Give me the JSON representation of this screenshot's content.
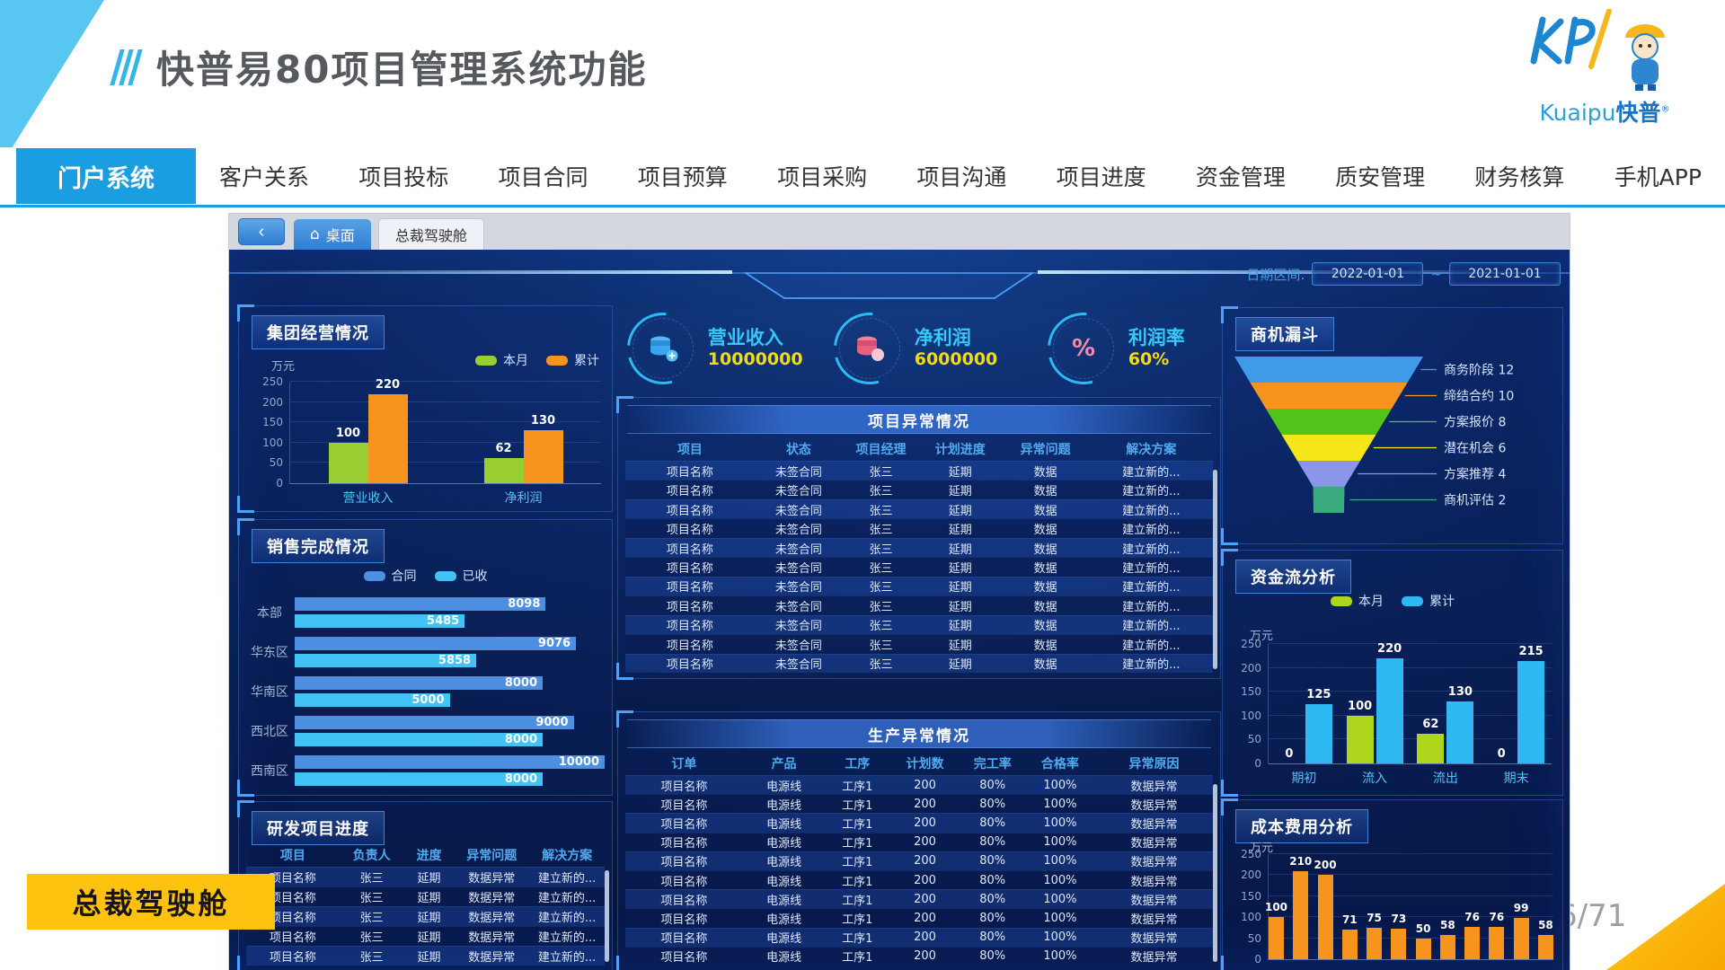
{
  "slide": {
    "title": "快普易80项目管理系统功能",
    "page_number": "6/71",
    "bottom_label": "总裁驾驶舱",
    "logo": {
      "en": "Kuaipu",
      "cn": "快普",
      "reg": "®"
    }
  },
  "nav": {
    "active_label": "门户系统",
    "items": [
      {
        "key": "customer-relations",
        "label": "客户关系"
      },
      {
        "key": "project-bidding",
        "label": "项目投标"
      },
      {
        "key": "project-contract",
        "label": "项目合同"
      },
      {
        "key": "project-budget",
        "label": "项目预算"
      },
      {
        "key": "project-procurement",
        "label": "项目采购"
      },
      {
        "key": "project-communication",
        "label": "项目沟通"
      },
      {
        "key": "project-progress",
        "label": "项目进度"
      },
      {
        "key": "fund-management",
        "label": "资金管理"
      },
      {
        "key": "quality-safety",
        "label": "质安管理"
      },
      {
        "key": "financial-accounting",
        "label": "财务核算"
      },
      {
        "key": "mobile-app",
        "label": "手机APP"
      }
    ]
  },
  "dashboard": {
    "tabs": {
      "back": "‹",
      "desktop": "桌面",
      "cockpit": "总裁驾驶舱"
    },
    "date_range": {
      "label": "日期区间:",
      "start": "2022-01-01",
      "separator": "~",
      "end": "2021-01-01"
    },
    "kpis": [
      {
        "icon": "coins-plus-icon",
        "label": "营业收入",
        "value": "10000000"
      },
      {
        "icon": "coins-icon",
        "label": "净利润",
        "value": "6000000"
      },
      {
        "icon": "percent-icon",
        "label": "利润率",
        "value": "60%"
      }
    ],
    "panels": {
      "group": {
        "title": "集团经营情况",
        "unit": "万元",
        "max": 250,
        "yticks": [
          250,
          200,
          150,
          100,
          50,
          0
        ],
        "type": "bar",
        "legend": [
          {
            "label": "本月",
            "color": "#9ACD32"
          },
          {
            "label": "累计",
            "color": "#F7941D"
          }
        ],
        "groups": [
          {
            "label": "营业收入",
            "values": [
              100,
              220
            ]
          },
          {
            "label": "净利润",
            "values": [
              62,
              130
            ]
          }
        ]
      },
      "sales": {
        "title": "销售完成情况",
        "max": 10000,
        "type": "hbar",
        "legend": [
          {
            "label": "合同",
            "color": "#4D8FE0"
          },
          {
            "label": "已收",
            "color": "#41C4F5"
          }
        ],
        "rows": [
          {
            "label": "本部",
            "contract": 8098,
            "received": 5485
          },
          {
            "label": "华东区",
            "contract": 9076,
            "received": 5858
          },
          {
            "label": "华南区",
            "contract": 8000,
            "received": 5000
          },
          {
            "label": "西北区",
            "contract": 9000,
            "received": 8000
          },
          {
            "label": "西南区",
            "contract": 10000,
            "received": 8000
          }
        ]
      },
      "rd": {
        "title": "研发项目进度",
        "headers": [
          "项目",
          "负责人",
          "进度",
          "异常问题",
          "解决方案"
        ],
        "widths": [
          26,
          18,
          14,
          21,
          21
        ],
        "rows": [
          [
            "项目名称",
            "张三",
            "延期",
            "数据异常",
            "建立新的..."
          ],
          [
            "项目名称",
            "张三",
            "延期",
            "数据异常",
            "建立新的..."
          ],
          [
            "项目名称",
            "张三",
            "延期",
            "数据异常",
            "建立新的..."
          ],
          [
            "项目名称",
            "张三",
            "延期",
            "数据异常",
            "建立新的..."
          ],
          [
            "项目名称",
            "张三",
            "延期",
            "数据异常",
            "建立新的..."
          ]
        ]
      },
      "project": {
        "title": "项目异常情况",
        "headers": [
          "项目",
          "状态",
          "项目经理",
          "计划进度",
          "异常问题",
          "解决方案"
        ],
        "widths": [
          22,
          15,
          13,
          14,
          15,
          21
        ],
        "rows": [
          [
            "项目名称",
            "未签合同",
            "张三",
            "延期",
            "数据",
            "建立新的..."
          ],
          [
            "项目名称",
            "未签合同",
            "张三",
            "延期",
            "数据",
            "建立新的..."
          ],
          [
            "项目名称",
            "未签合同",
            "张三",
            "延期",
            "数据",
            "建立新的..."
          ],
          [
            "项目名称",
            "未签合同",
            "张三",
            "延期",
            "数据",
            "建立新的..."
          ],
          [
            "项目名称",
            "未签合同",
            "张三",
            "延期",
            "数据",
            "建立新的..."
          ],
          [
            "项目名称",
            "未签合同",
            "张三",
            "延期",
            "数据",
            "建立新的..."
          ],
          [
            "项目名称",
            "未签合同",
            "张三",
            "延期",
            "数据",
            "建立新的..."
          ],
          [
            "项目名称",
            "未签合同",
            "张三",
            "延期",
            "数据",
            "建立新的..."
          ],
          [
            "项目名称",
            "未签合同",
            "张三",
            "延期",
            "数据",
            "建立新的..."
          ],
          [
            "项目名称",
            "未签合同",
            "张三",
            "延期",
            "数据",
            "建立新的..."
          ],
          [
            "项目名称",
            "未签合同",
            "张三",
            "延期",
            "数据",
            "建立新的..."
          ]
        ]
      },
      "production": {
        "title": "生产异常情况",
        "headers": [
          "订单",
          "产品",
          "工序",
          "计划数",
          "完工率",
          "合格率",
          "异常原因"
        ],
        "widths": [
          20,
          14,
          11,
          12,
          11,
          12,
          20
        ],
        "rows": [
          [
            "项目名称",
            "电源线",
            "工序1",
            "200",
            "80%",
            "100%",
            "数据异常"
          ],
          [
            "项目名称",
            "电源线",
            "工序1",
            "200",
            "80%",
            "100%",
            "数据异常"
          ],
          [
            "项目名称",
            "电源线",
            "工序1",
            "200",
            "80%",
            "100%",
            "数据异常"
          ],
          [
            "项目名称",
            "电源线",
            "工序1",
            "200",
            "80%",
            "100%",
            "数据异常"
          ],
          [
            "项目名称",
            "电源线",
            "工序1",
            "200",
            "80%",
            "100%",
            "数据异常"
          ],
          [
            "项目名称",
            "电源线",
            "工序1",
            "200",
            "80%",
            "100%",
            "数据异常"
          ],
          [
            "项目名称",
            "电源线",
            "工序1",
            "200",
            "80%",
            "100%",
            "数据异常"
          ],
          [
            "项目名称",
            "电源线",
            "工序1",
            "200",
            "80%",
            "100%",
            "数据异常"
          ],
          [
            "项目名称",
            "电源线",
            "工序1",
            "200",
            "80%",
            "100%",
            "数据异常"
          ],
          [
            "项目名称",
            "电源线",
            "工序1",
            "200",
            "80%",
            "100%",
            "数据异常"
          ]
        ]
      },
      "funnel": {
        "title": "商机漏斗",
        "type": "funnel",
        "stages": [
          {
            "label": "商务阶段",
            "value": 12,
            "color": "#3F9BE8"
          },
          {
            "label": "缔结合约",
            "value": 10,
            "color": "#F7941D"
          },
          {
            "label": "方案报价",
            "value": 8,
            "color": "#52C41A"
          },
          {
            "label": "潜在机会",
            "value": 6,
            "color": "#F5E61A"
          },
          {
            "label": "方案推荐",
            "value": 4,
            "color": "#8B96E8"
          },
          {
            "label": "商机评估",
            "value": 2,
            "color": "#3BAA7E"
          }
        ]
      },
      "cash": {
        "title": "资金流分析",
        "unit": "万元",
        "max": 250,
        "yticks": [
          250,
          200,
          150,
          100,
          50,
          0
        ],
        "type": "bar",
        "legend": [
          {
            "label": "本月",
            "color": "#AED61C"
          },
          {
            "label": "累计",
            "color": "#2FB9F2"
          }
        ],
        "groups": [
          {
            "label": "期初",
            "values": [
              0,
              125
            ]
          },
          {
            "label": "流入",
            "values": [
              100,
              220
            ]
          },
          {
            "label": "流出",
            "values": [
              62,
              130
            ]
          },
          {
            "label": "期末",
            "values": [
              0,
              215
            ]
          }
        ]
      },
      "cost": {
        "title": "成本费用分析",
        "unit": "万元",
        "max": 250,
        "yticks": [
          250,
          200,
          150,
          100,
          50,
          0
        ],
        "type": "bar",
        "color": "#F7941D",
        "values": [
          100,
          210,
          200,
          71,
          75,
          73,
          50,
          58,
          76,
          76,
          99,
          58
        ]
      }
    }
  }
}
